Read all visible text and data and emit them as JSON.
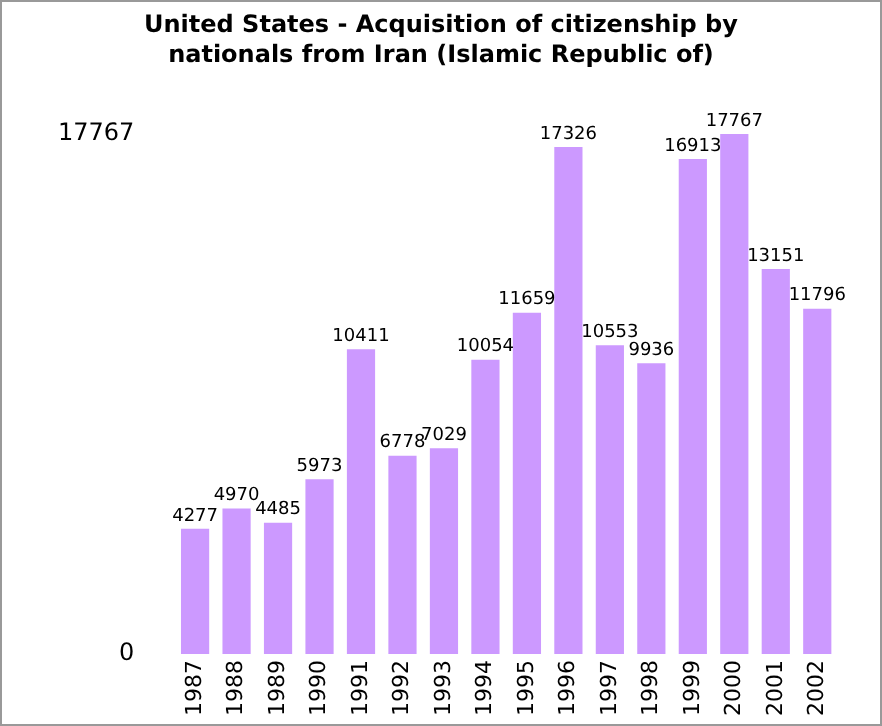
{
  "chart_data": {
    "type": "bar",
    "title": "United States - Acquisition of citizenship by nationals from Iran (Islamic Republic of)",
    "categories": [
      "1987",
      "1988",
      "1989",
      "1990",
      "1991",
      "1992",
      "1993",
      "1994",
      "1995",
      "1996",
      "1997",
      "1998",
      "1999",
      "2000",
      "2001",
      "2002"
    ],
    "values": [
      4277,
      4970,
      4485,
      5973,
      10411,
      6778,
      7029,
      10054,
      11659,
      17326,
      10553,
      9936,
      16913,
      17767,
      13151,
      11796
    ],
    "color": "#cc99ff",
    "ylim": [
      0,
      17767
    ],
    "yticks": [
      0,
      17767
    ],
    "grid": false,
    "data_labels": true
  }
}
